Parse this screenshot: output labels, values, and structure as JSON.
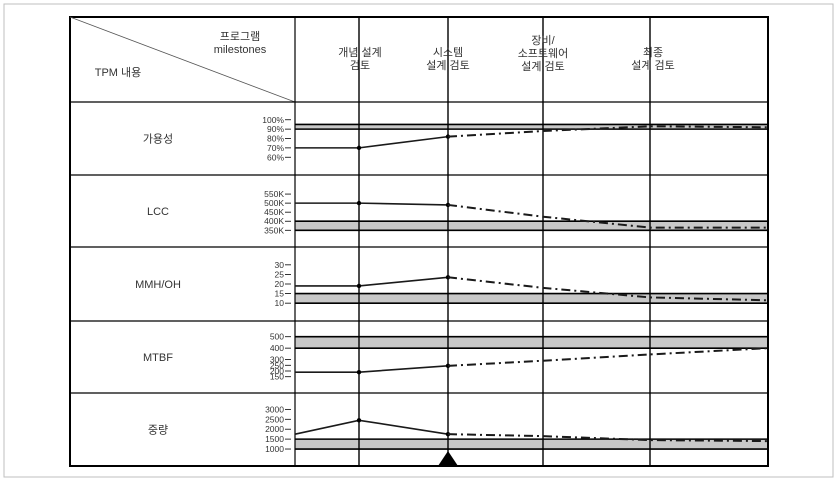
{
  "header": {
    "corner_top": [
      "프로그램",
      "milestones"
    ],
    "corner_bottom": "TPM 내용",
    "milestones": [
      {
        "lines": [
          "개념 설계",
          "검토"
        ]
      },
      {
        "lines": [
          "시스템",
          "설계 검토"
        ]
      },
      {
        "lines": [
          "장비/",
          "소프트웨어",
          "설계 검토"
        ]
      },
      {
        "lines": [
          "최종",
          "설계 검토"
        ]
      }
    ]
  },
  "rows": [
    {
      "label": "가용성",
      "ticks": [
        "100%",
        "90%",
        "80%",
        "70%",
        "60%"
      ],
      "tick_values": [
        100,
        90,
        80,
        70,
        60
      ],
      "ylim": [
        56,
        104
      ],
      "band": [
        90,
        95
      ],
      "actual": [
        [
          0,
          70
        ],
        [
          1,
          70
        ],
        [
          2,
          82
        ]
      ],
      "projected": [
        [
          2,
          82
        ],
        [
          3,
          88
        ],
        [
          4,
          93
        ],
        [
          5,
          92
        ]
      ]
    },
    {
      "label": "LCC",
      "ticks": [
        "550K",
        "500K",
        "450K",
        "400K",
        "350K"
      ],
      "tick_values": [
        550,
        500,
        450,
        400,
        350
      ],
      "ylim": [
        335,
        578
      ],
      "band": [
        350,
        400
      ],
      "actual": [
        [
          0,
          500
        ],
        [
          1,
          500
        ],
        [
          2,
          490
        ]
      ],
      "projected": [
        [
          2,
          490
        ],
        [
          3,
          425
        ],
        [
          4,
          365
        ],
        [
          5,
          365
        ]
      ]
    },
    {
      "label": "MMH/OH",
      "ticks": [
        "30",
        "25",
        "20",
        "15",
        "10"
      ],
      "tick_values": [
        30,
        25,
        20,
        15,
        10
      ],
      "ylim": [
        8,
        32
      ],
      "band": [
        10,
        15
      ],
      "actual": [
        [
          0,
          19
        ],
        [
          1,
          19
        ],
        [
          2,
          23.5
        ]
      ],
      "projected": [
        [
          2,
          23.5
        ],
        [
          3,
          18
        ],
        [
          4,
          13
        ],
        [
          5,
          11.5
        ]
      ]
    },
    {
      "label": "MTBF",
      "ticks": [
        "500",
        "400",
        "300",
        "250",
        "200",
        "150"
      ],
      "tick_values": [
        500,
        400,
        300,
        250,
        200,
        150
      ],
      "ylim": [
        130,
        515
      ],
      "band": [
        400,
        500
      ],
      "actual": [
        [
          0,
          190
        ],
        [
          1,
          190
        ],
        [
          2,
          245
        ]
      ],
      "projected": [
        [
          2,
          245
        ],
        [
          3,
          290
        ],
        [
          4,
          345
        ],
        [
          5,
          400
        ]
      ]
    },
    {
      "label": "중량",
      "ticks": [
        "3000",
        "2500",
        "2000",
        "1500",
        "1000"
      ],
      "tick_values": [
        3000,
        2500,
        2000,
        1500,
        1000
      ],
      "ylim": [
        850,
        3120
      ],
      "band": [
        1000,
        1500
      ],
      "actual": [
        [
          0,
          1750
        ],
        [
          1,
          2450
        ],
        [
          2,
          1750
        ]
      ],
      "projected": [
        [
          2,
          1750
        ],
        [
          3,
          1650
        ],
        [
          4,
          1450
        ],
        [
          5,
          1400
        ]
      ]
    }
  ],
  "colors": {
    "band": "#c8c8c8",
    "line": "#1a1a1a",
    "frame": "#000000"
  },
  "marker_icon": "triangle-marker-icon"
}
